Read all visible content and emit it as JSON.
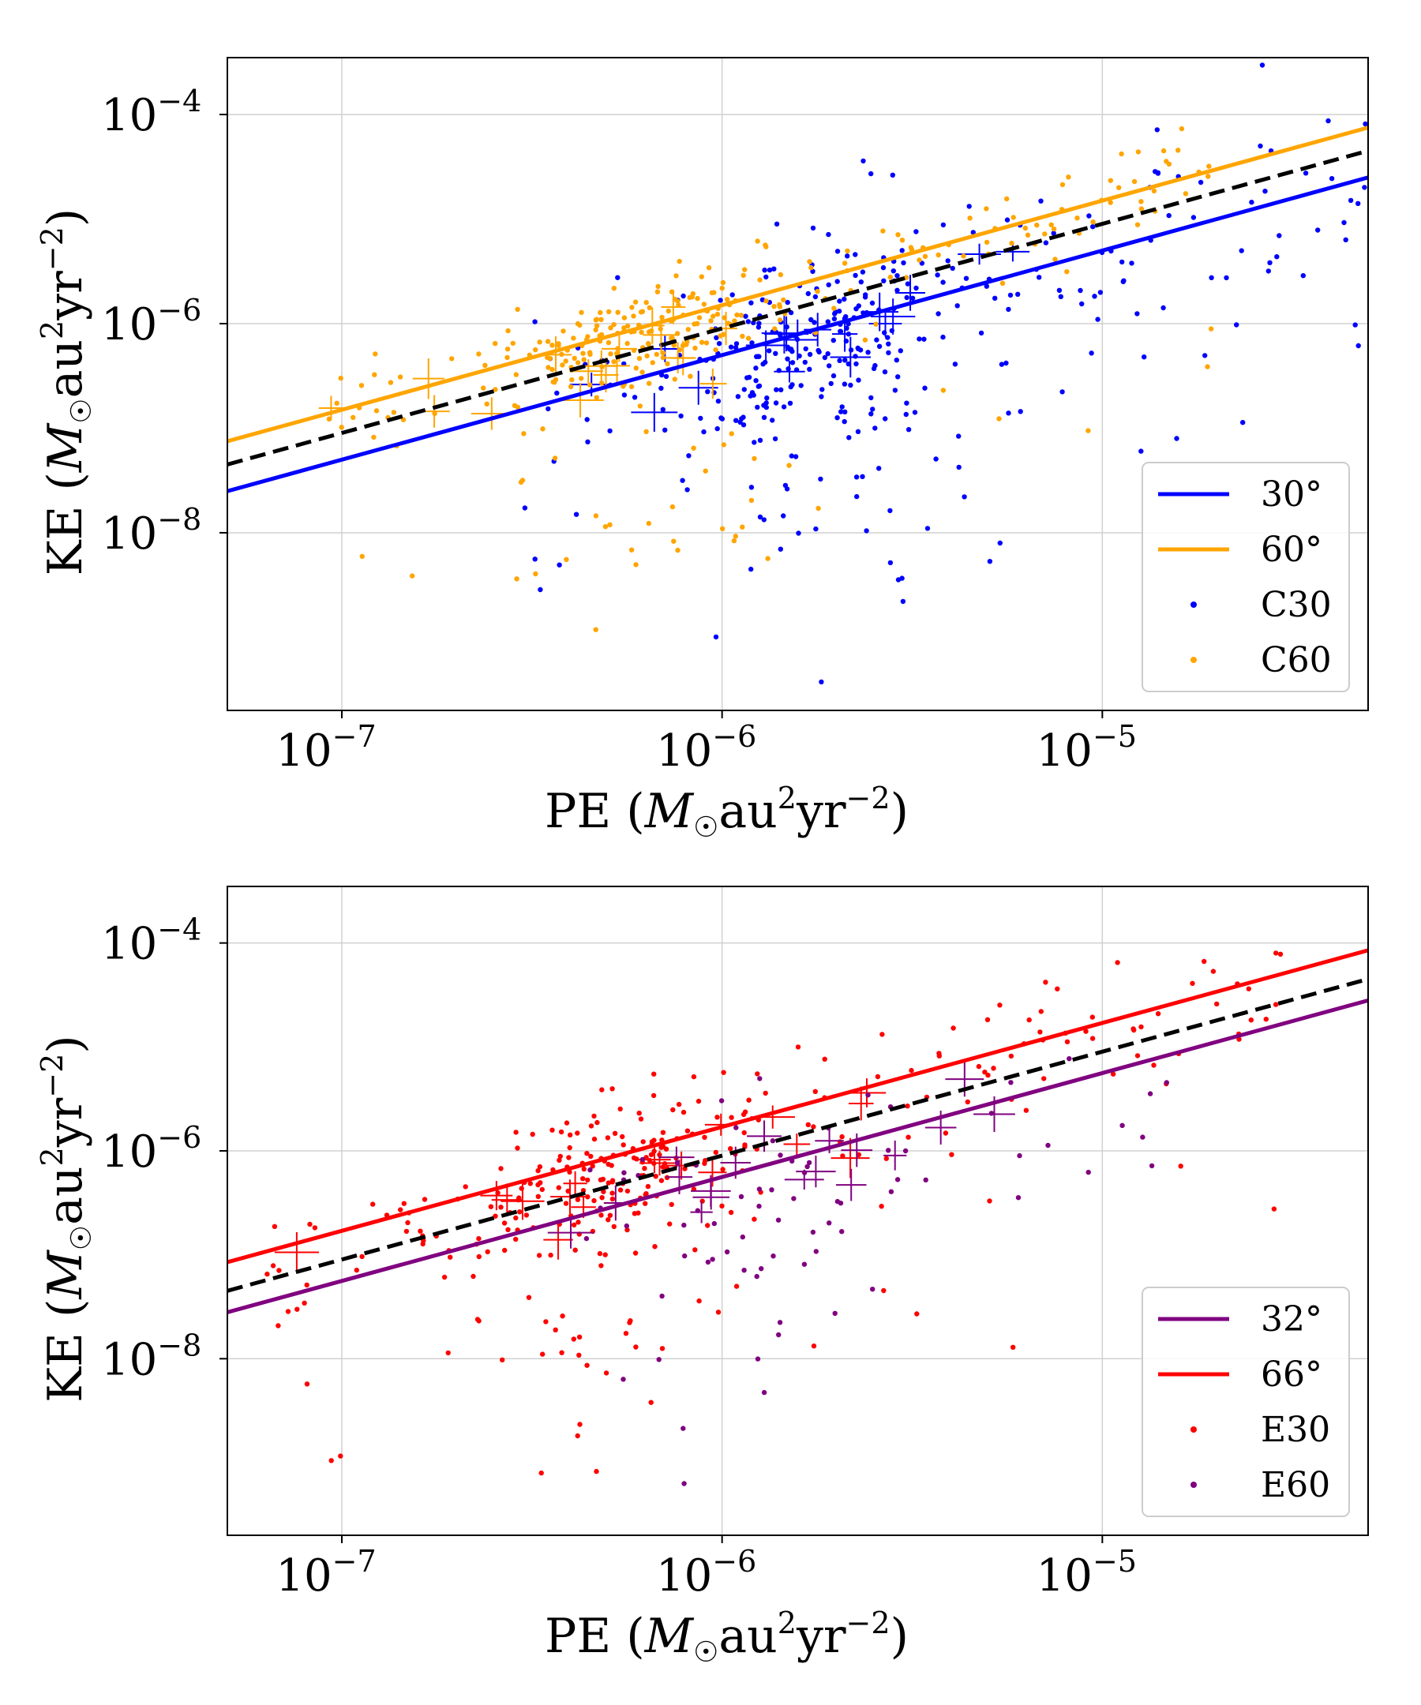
{
  "chart_data": [
    {
      "type": "scatter",
      "xscale": "log",
      "yscale": "log",
      "xlim": [
        5e-08,
        5e-05
      ],
      "ylim": [
        2e-10,
        0.00035
      ],
      "xlabel_main": "PE (",
      "ylabel_main": "KE (",
      "unit_sym": "M",
      "unit_sub": "☉",
      "unit_au": "au",
      "unit_au_exp": "2",
      "unit_yr": "yr",
      "unit_yr_exp": "−2",
      "unit_close": ")",
      "x_ticks": [
        {
          "value": 1e-07,
          "base": "10",
          "exp": "−7"
        },
        {
          "value": 1e-06,
          "base": "10",
          "exp": "−6"
        },
        {
          "value": 1e-05,
          "base": "10",
          "exp": "−5"
        }
      ],
      "y_ticks": [
        {
          "value": 0.0001,
          "base": "10",
          "exp": "−4"
        },
        {
          "value": 1e-06,
          "base": "10",
          "exp": "−6"
        },
        {
          "value": 1e-08,
          "base": "10",
          "exp": "−8"
        }
      ],
      "lines": [
        {
          "name": "30°",
          "color": "#0000ff",
          "x": [
            5e-08,
            5e-05
          ],
          "y": [
            2.5e-08,
            2.5e-05
          ],
          "style": "solid"
        },
        {
          "name": "60°",
          "color": "#ffa500",
          "x": [
            5e-08,
            5e-05
          ],
          "y": [
            7.5e-08,
            7.5e-05
          ],
          "style": "solid"
        },
        {
          "name": "reference",
          "color": "#000000",
          "x": [
            5e-08,
            5e-05
          ],
          "y": [
            4.5e-08,
            4.5e-05
          ],
          "style": "dashed"
        }
      ],
      "scatter_series": [
        {
          "name": "C30",
          "color": "#0000ff",
          "seed": 11,
          "n": 380,
          "x_range": [
            3e-07,
            5e-05
          ],
          "offset_mean": -0.45,
          "offset_sd": 0.55,
          "tail": 0.12
        },
        {
          "name": "C60",
          "color": "#ffa500",
          "seed": 23,
          "n": 320,
          "x_range": [
            9e-08,
            2e-05
          ],
          "offset_mean": 0.15,
          "offset_sd": 0.25,
          "tail": 0.1
        }
      ],
      "legend": [
        {
          "label": "30°",
          "color": "#0000ff",
          "kind": "line"
        },
        {
          "label": "60°",
          "color": "#ffa500",
          "kind": "line"
        },
        {
          "label": "C30",
          "color": "#0000ff",
          "kind": "point"
        },
        {
          "label": "C60",
          "color": "#ffa500",
          "kind": "point"
        }
      ],
      "legend_position": "lower-right",
      "grid": true
    },
    {
      "type": "scatter",
      "xscale": "log",
      "yscale": "log",
      "xlim": [
        5e-08,
        5e-05
      ],
      "ylim": [
        2e-10,
        0.00035
      ],
      "xlabel_main": "PE (",
      "ylabel_main": "KE (",
      "unit_sym": "M",
      "unit_sub": "☉",
      "unit_au": "au",
      "unit_au_exp": "2",
      "unit_yr": "yr",
      "unit_yr_exp": "−2",
      "unit_close": ")",
      "x_ticks": [
        {
          "value": 1e-07,
          "base": "10",
          "exp": "−7"
        },
        {
          "value": 1e-06,
          "base": "10",
          "exp": "−6"
        },
        {
          "value": 1e-05,
          "base": "10",
          "exp": "−5"
        }
      ],
      "y_ticks": [
        {
          "value": 0.0001,
          "base": "10",
          "exp": "−4"
        },
        {
          "value": 1e-06,
          "base": "10",
          "exp": "−6"
        },
        {
          "value": 1e-08,
          "base": "10",
          "exp": "−8"
        }
      ],
      "lines": [
        {
          "name": "32°",
          "color": "#800080",
          "x": [
            5e-08,
            5e-05
          ],
          "y": [
            2.8e-08,
            2.8e-05
          ],
          "style": "solid"
        },
        {
          "name": "66°",
          "color": "#ff0000",
          "x": [
            5e-08,
            5e-05
          ],
          "y": [
            8.5e-08,
            8.5e-05
          ],
          "style": "solid"
        },
        {
          "name": "reference",
          "color": "#000000",
          "x": [
            5e-08,
            5e-05
          ],
          "y": [
            4.5e-08,
            4.5e-05
          ],
          "style": "dashed"
        }
      ],
      "scatter_series": [
        {
          "name": "E30",
          "color": "#ff0000",
          "seed": 37,
          "n": 330,
          "x_range": [
            6e-08,
            3e-05
          ],
          "offset_mean": 0.1,
          "offset_sd": 0.35,
          "tail": 0.12
        },
        {
          "name": "E60",
          "color": "#800080",
          "seed": 53,
          "n": 75,
          "x_range": [
            4e-07,
            1.5e-05
          ],
          "offset_mean": -0.55,
          "offset_sd": 0.55,
          "tail": 0.15
        }
      ],
      "legend": [
        {
          "label": "32°",
          "color": "#800080",
          "kind": "line"
        },
        {
          "label": "66°",
          "color": "#ff0000",
          "kind": "line"
        },
        {
          "label": "E30",
          "color": "#ff0000",
          "kind": "point"
        },
        {
          "label": "E60",
          "color": "#800080",
          "kind": "point"
        }
      ],
      "legend_position": "lower-right",
      "grid": true
    }
  ]
}
